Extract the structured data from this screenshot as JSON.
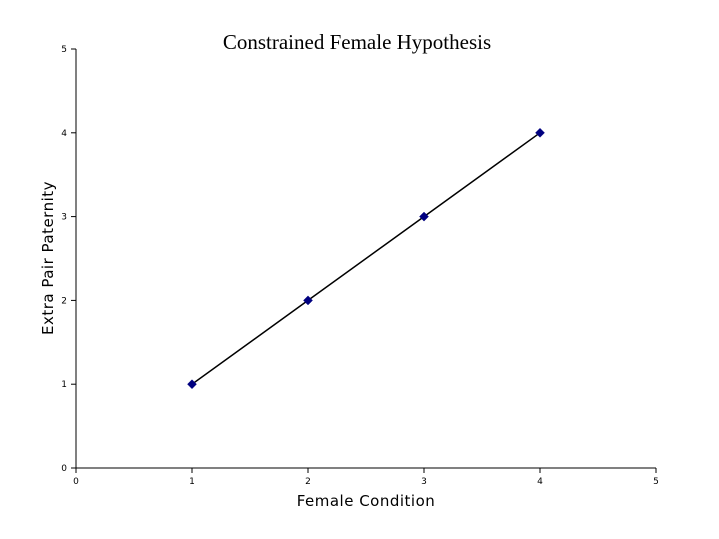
{
  "chart_data": {
    "type": "scatter",
    "title": "Constrained Female Hypothesis",
    "xlabel": "Female Condition",
    "ylabel": "Extra Pair Paternity",
    "xlim": [
      0,
      5
    ],
    "ylim": [
      0,
      5
    ],
    "x_ticks": [
      "0",
      "1",
      "2",
      "3",
      "4",
      "5"
    ],
    "y_ticks": [
      "0",
      "1",
      "2",
      "3",
      "4",
      "5"
    ],
    "grid": false,
    "legend": "none",
    "series": [
      {
        "x": [
          1,
          2,
          3,
          4
        ],
        "y": [
          1,
          2,
          3,
          4
        ],
        "marker": "diamond",
        "marker_color": "#000080",
        "line_color": "#000000",
        "connected": true
      }
    ]
  }
}
